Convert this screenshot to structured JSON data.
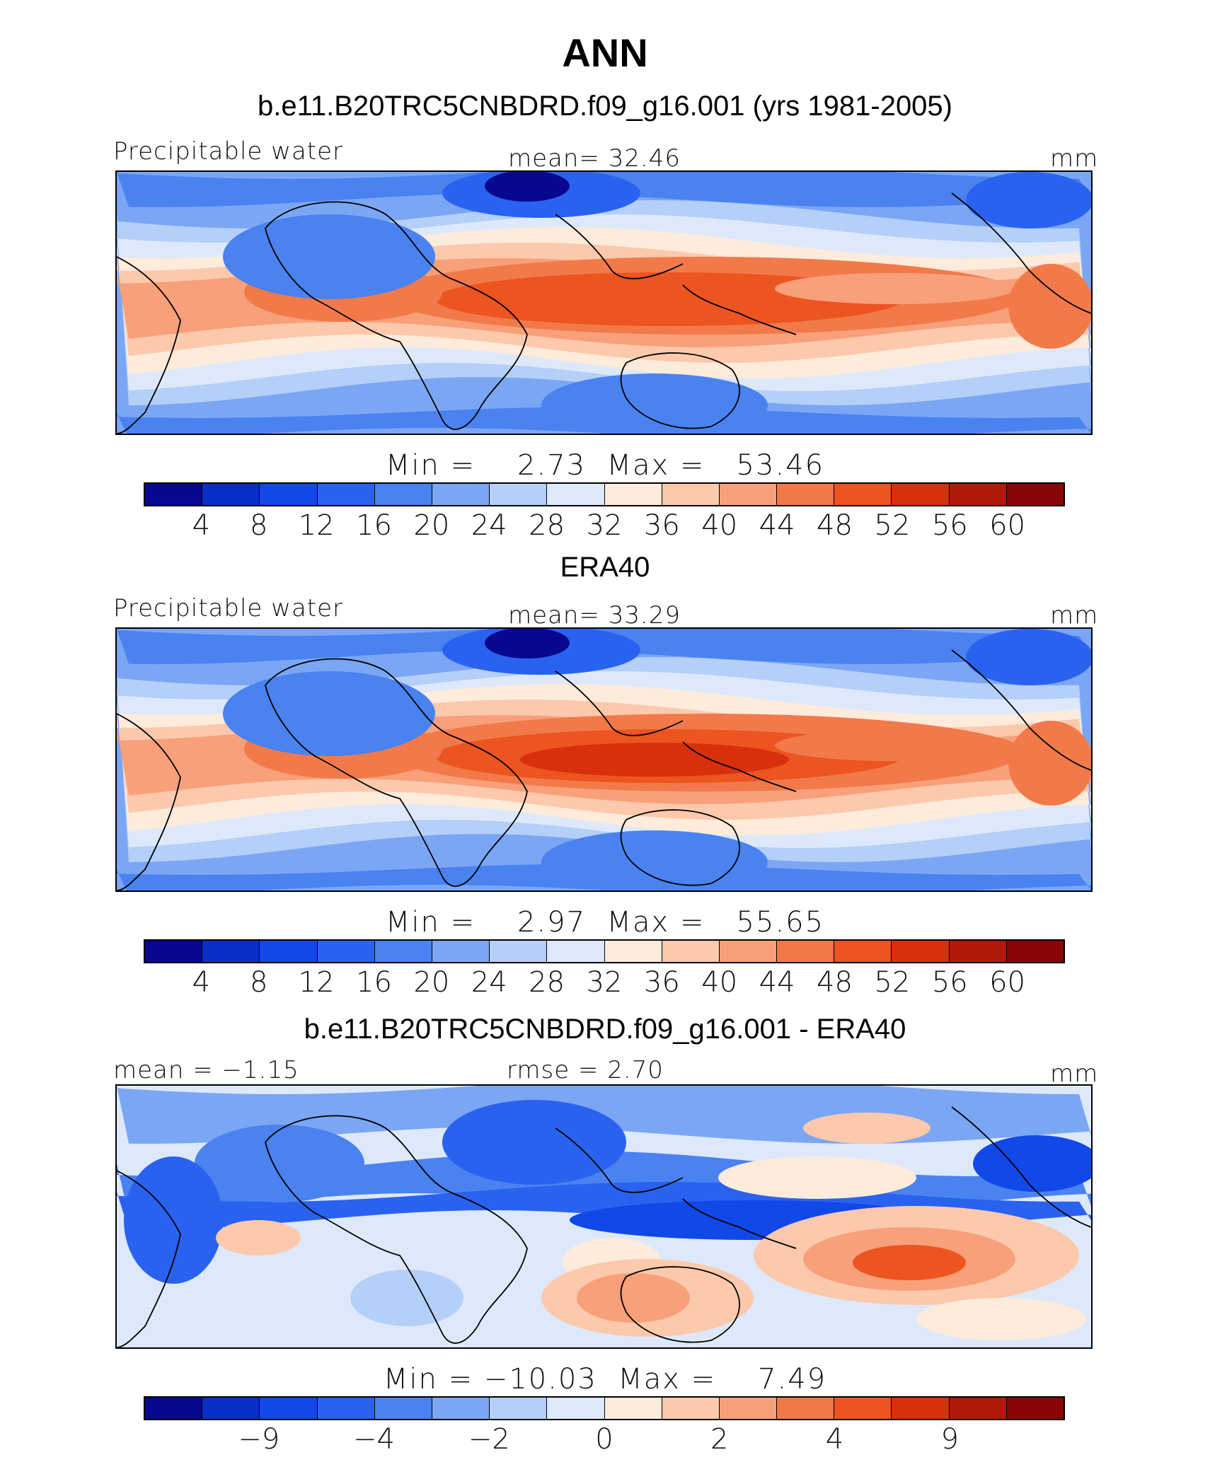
{
  "figure": {
    "title": "ANN"
  },
  "panels": [
    {
      "heading": "b.e11.B20TRC5CNBDRD.f09_g16.001 (yrs 1981-2005)",
      "left_label": "Precipitable water",
      "center_label": "mean=   32.46",
      "right_label": "mm",
      "stats": "Min =    2.73  Max =   53.46",
      "field": "model"
    },
    {
      "heading": "ERA40",
      "left_label": "Precipitable water",
      "center_label": "mean=   33.29",
      "right_label": "mm",
      "stats": "Min =    2.97  Max =   55.65",
      "field": "obs"
    },
    {
      "heading": "b.e11.B20TRC5CNBDRD.f09_g16.001 - ERA40",
      "left_label": "mean =  −1.15",
      "center_label": "rmse =    2.70",
      "right_label": "mm",
      "stats": "Min = −10.03  Max =    7.49",
      "field": "diff"
    }
  ],
  "colorbar_colors": [
    "#08088f",
    "#0a2ec8",
    "#1148e8",
    "#2a62f0",
    "#4a82f0",
    "#7ba6f4",
    "#b4cff8",
    "#dde9fb",
    "#fdebdb",
    "#fcc9ac",
    "#f8a07a",
    "#f27a4a",
    "#ec5420",
    "#d8300c",
    "#b01a0a",
    "#880606"
  ],
  "colorbars": [
    {
      "ticks": [
        "4",
        "8",
        "12",
        "16",
        "20",
        "24",
        "28",
        "32",
        "36",
        "40",
        "44",
        "48",
        "52",
        "56",
        "60"
      ]
    },
    {
      "ticks": [
        "4",
        "8",
        "12",
        "16",
        "20",
        "24",
        "28",
        "32",
        "36",
        "40",
        "44",
        "48",
        "52",
        "56",
        "60"
      ]
    },
    {
      "ticks": [
        {
          "pos": 2,
          "label": "−9"
        },
        {
          "pos": 4,
          "label": "−4"
        },
        {
          "pos": 6,
          "label": "−2"
        },
        {
          "pos": 8,
          "label": "0"
        },
        {
          "pos": 10,
          "label": "2"
        },
        {
          "pos": 12,
          "label": "4"
        },
        {
          "pos": 14,
          "label": "9"
        }
      ]
    }
  ]
}
